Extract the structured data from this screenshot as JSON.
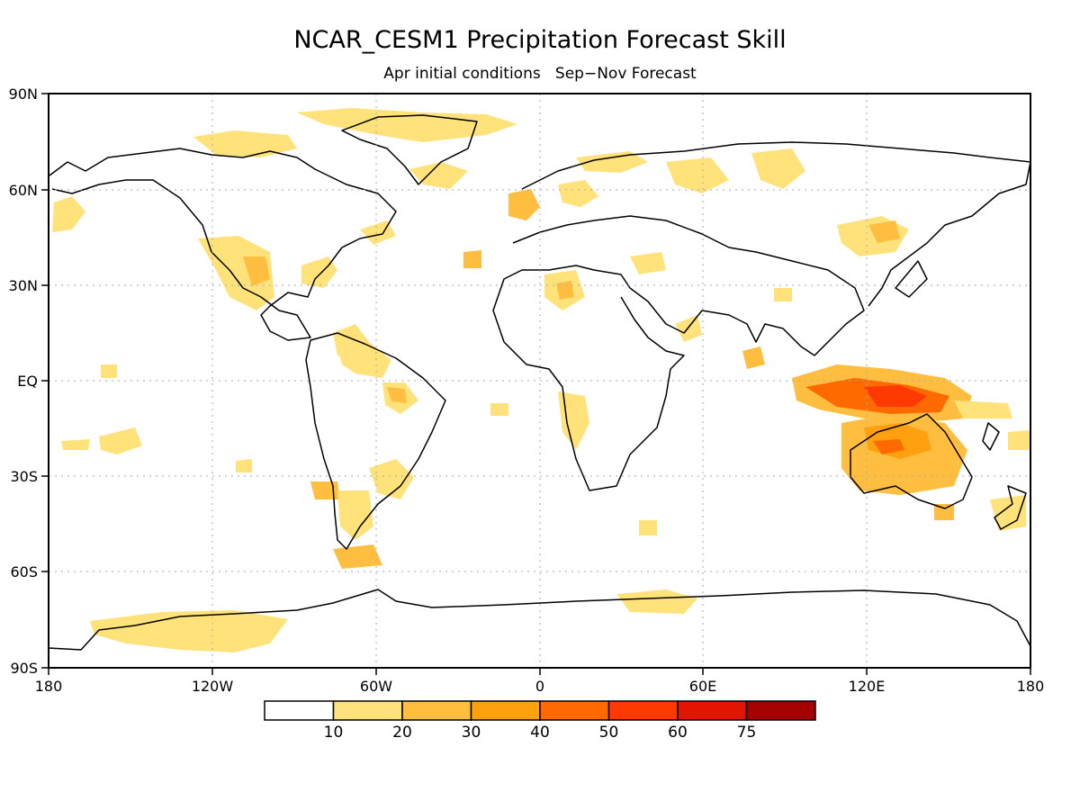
{
  "title": "NCAR_CESM1 Precipitation Forecast Skill",
  "subtitle": "Apr initial conditions   Sep−Nov Forecast",
  "lat_labels": [
    "90N",
    "60N",
    "30N",
    "EQ",
    "30S",
    "60S",
    "90S"
  ],
  "lon_labels": [
    "180",
    "120W",
    "60W",
    "0",
    "60E",
    "120E",
    "180"
  ],
  "colorbar": {
    "tick_labels": [
      "10",
      "20",
      "30",
      "40",
      "50",
      "60",
      "75"
    ],
    "colors": [
      "#ffffff",
      "#ffe27a",
      "#ffbe3f",
      "#ffa00f",
      "#ff6a00",
      "#ff3a00",
      "#e21500",
      "#a50000"
    ]
  },
  "colors": {
    "land_outline": "#000000",
    "grid": "#aaaaaa",
    "background": "#ffffff"
  }
}
